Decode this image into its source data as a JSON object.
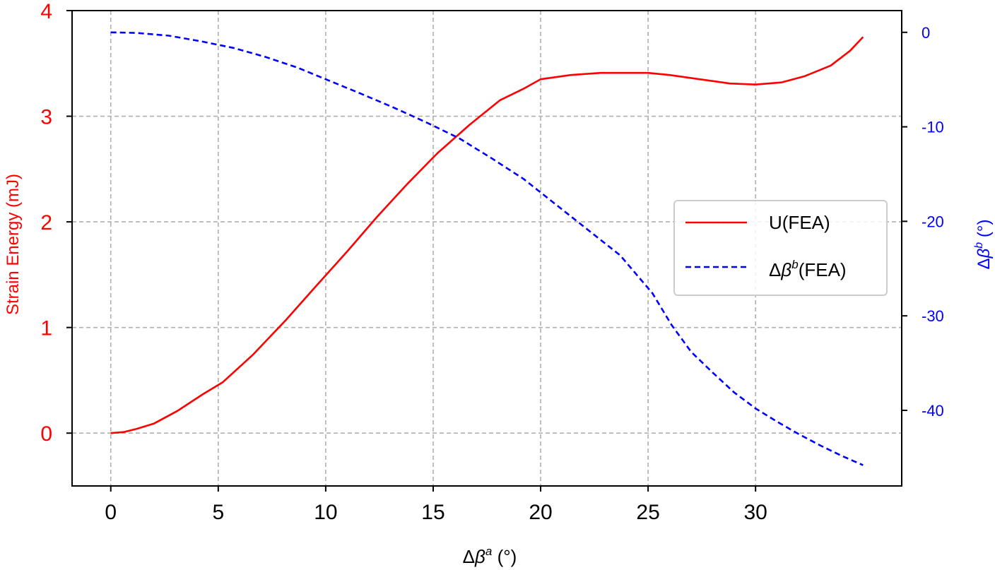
{
  "chart_data": {
    "type": "line",
    "xlabel": "Δβ^a (°)",
    "ylabel_left": "Strain Energy (mJ)",
    "ylabel_right": "Δβ^b (°)",
    "xlim": [
      -1.8,
      36.8
    ],
    "xticks": [
      0,
      5,
      10,
      15,
      20,
      25,
      30
    ],
    "ylim_left": [
      -0.5,
      4.0
    ],
    "yticks_left": [
      0,
      1,
      2,
      3,
      4
    ],
    "ylim_right": [
      -48.0,
      2.3
    ],
    "yticks_right": [
      0,
      -10,
      -20,
      -30,
      -40
    ],
    "grid": true,
    "legend_position": "center-right",
    "series": [
      {
        "name": "U(FEA)",
        "axis": "left",
        "color": "#ff0000",
        "style": "solid",
        "x": [
          0,
          0.6,
          1.2,
          2.0,
          3.1,
          4.3,
          5.2,
          6.6,
          8.1,
          9.5,
          11.0,
          12.4,
          13.8,
          15.2,
          16.7,
          18.1,
          19.2,
          20.0,
          21.4,
          22.8,
          24.0,
          25.0,
          26.0,
          27.4,
          28.8,
          30.0,
          31.2,
          32.3,
          33.5,
          34.4,
          35.0
        ],
        "values": [
          0,
          0.01,
          0.04,
          0.09,
          0.21,
          0.37,
          0.48,
          0.74,
          1.06,
          1.38,
          1.72,
          2.05,
          2.36,
          2.65,
          2.92,
          3.15,
          3.26,
          3.35,
          3.39,
          3.41,
          3.41,
          3.41,
          3.39,
          3.35,
          3.31,
          3.3,
          3.32,
          3.38,
          3.48,
          3.62,
          3.75
        ]
      },
      {
        "name": "Δβ^b(FEA)",
        "axis": "right",
        "color": "#0000ff",
        "style": "dashed",
        "x": [
          0,
          1.2,
          2.7,
          4.2,
          5.7,
          7.2,
          8.7,
          10.2,
          11.7,
          13.2,
          14.7,
          16.2,
          17.7,
          19.2,
          20.7,
          22.2,
          23.7,
          25.2,
          26.1,
          27.0,
          28.0,
          29.0,
          30.0,
          31.0,
          32.0,
          33.0,
          34.0,
          35.0
        ],
        "values": [
          0,
          -0.06,
          -0.35,
          -0.95,
          -1.65,
          -2.6,
          -3.75,
          -5.15,
          -6.55,
          -8.0,
          -9.55,
          -11.2,
          -13.3,
          -15.5,
          -18.2,
          -20.9,
          -23.6,
          -27.6,
          -31.0,
          -33.8,
          -36.0,
          -38.1,
          -39.8,
          -41.2,
          -42.5,
          -43.7,
          -44.8,
          -45.8
        ]
      }
    ]
  }
}
